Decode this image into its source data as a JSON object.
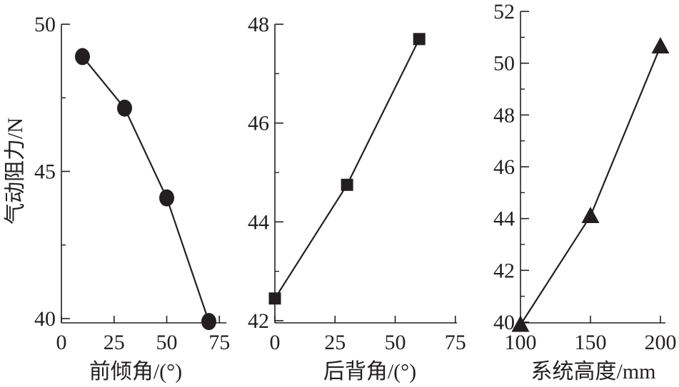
{
  "chart_data": [
    {
      "type": "line",
      "xlabel": "前倾角/(°)",
      "ylabel": "气动阻力/N",
      "marker": "circle",
      "xlim": [
        0,
        75
      ],
      "ylim": [
        40,
        50
      ],
      "x_ticks": [
        0,
        25,
        50,
        75
      ],
      "y_ticks": [
        40,
        45,
        50
      ],
      "y_minor_ticks": [
        42.5,
        47.5
      ],
      "series": [
        {
          "x": [
            10,
            30,
            50,
            70
          ],
          "y": [
            48.9,
            47.15,
            44.1,
            39.9
          ]
        }
      ]
    },
    {
      "type": "line",
      "xlabel": "后背角/(°)",
      "marker": "square",
      "xlim": [
        0,
        75
      ],
      "ylim": [
        42,
        48
      ],
      "x_ticks": [
        0,
        25,
        50,
        75
      ],
      "y_ticks": [
        42,
        44,
        46,
        48
      ],
      "y_minor_ticks": [
        43,
        45,
        47
      ],
      "series": [
        {
          "x": [
            0,
            30,
            60
          ],
          "y": [
            42.45,
            44.75,
            47.7
          ]
        }
      ]
    },
    {
      "type": "line",
      "xlabel": "系统高度/mm",
      "marker": "triangle",
      "xlim": [
        100,
        200
      ],
      "ylim": [
        40,
        52
      ],
      "x_ticks": [
        100,
        150,
        200
      ],
      "y_ticks": [
        40,
        42,
        44,
        46,
        48,
        50,
        52
      ],
      "y_minor_ticks": [
        41,
        43,
        45,
        47,
        49,
        51
      ],
      "series": [
        {
          "x": [
            100,
            150,
            200
          ],
          "y": [
            39.9,
            44.1,
            50.65
          ]
        }
      ]
    }
  ],
  "colors": {
    "ink": "#231f20"
  }
}
